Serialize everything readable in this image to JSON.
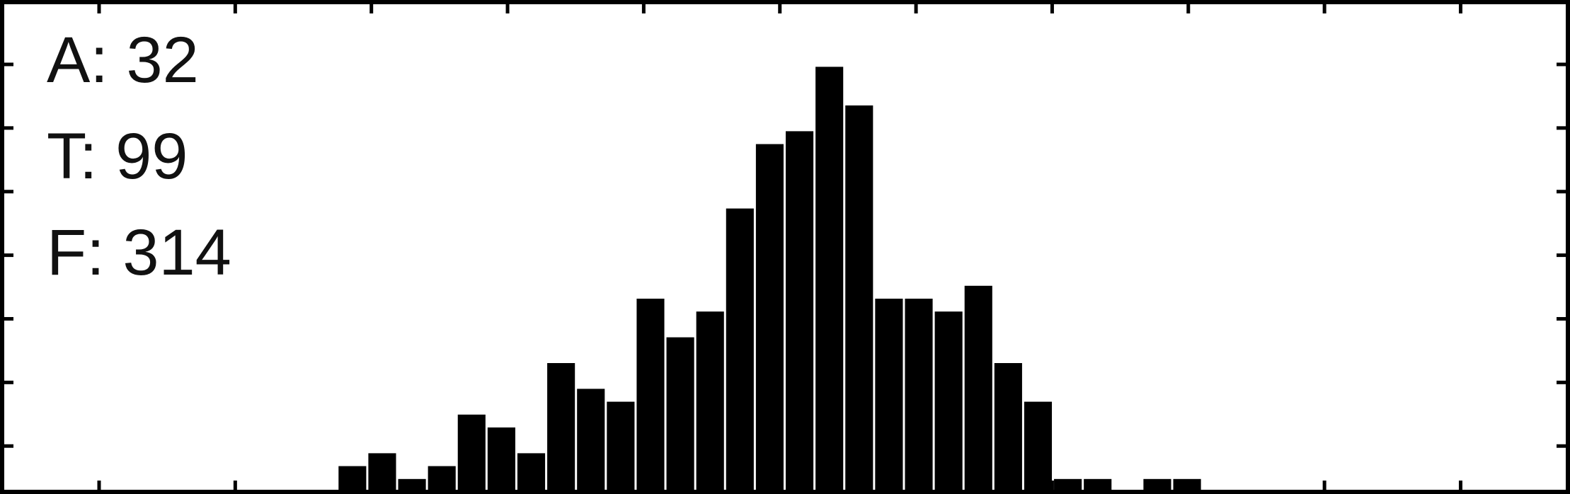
{
  "chart_data": {
    "type": "bar",
    "title": "",
    "xlabel": "",
    "ylabel": "",
    "annotations": [
      "A: 32",
      "T: 99",
      "F: 314"
    ],
    "ylim": [
      0,
      35
    ],
    "bar_color": "#000000",
    "grid": false,
    "bins": {
      "start": 0,
      "width": 1,
      "count": 52
    },
    "values": [
      0,
      0,
      0,
      0,
      0,
      0,
      0,
      0,
      0,
      0,
      0,
      2,
      3,
      1,
      2,
      6,
      5,
      3,
      10,
      8,
      7,
      15,
      12,
      14,
      22,
      27,
      28,
      33,
      30,
      15,
      15,
      14,
      16,
      10,
      7,
      1,
      1,
      0,
      1,
      1,
      0,
      0,
      0,
      0,
      0,
      0,
      0,
      0,
      0,
      0,
      0,
      0
    ],
    "x_tick_count": 11,
    "y_tick_count": 7
  }
}
